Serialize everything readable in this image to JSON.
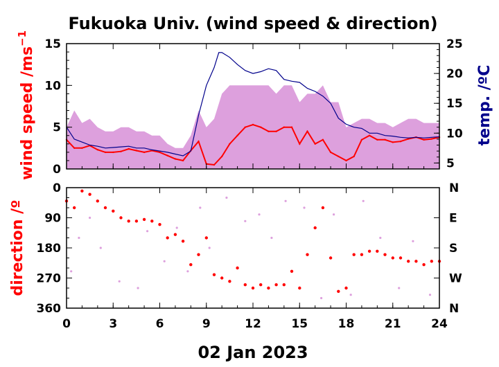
{
  "title": "Fukuoka Univ. (wind speed & direction)",
  "xlabel": "02 Jan 2023",
  "colors": {
    "wind": "#ff0000",
    "gust": "#dda0dd",
    "temp": "#00008b",
    "axis": "#000000"
  },
  "chart_data": [
    {
      "type": "line",
      "panel": "top",
      "ylabel": "wind speed /ms",
      "ylabel_sup": "−1",
      "y2label": "temp. /ºC",
      "xlim": [
        0,
        24
      ],
      "ylim": [
        0,
        15
      ],
      "y2lim": [
        4,
        25
      ],
      "x_ticks": [
        0,
        3,
        6,
        9,
        12,
        15,
        18,
        21,
        24
      ],
      "y_ticks": [
        0,
        5,
        10,
        15
      ],
      "y2_ticks": [
        5,
        10,
        15,
        20,
        25
      ],
      "series": [
        {
          "role": "gust",
          "x": [
            0,
            0.5,
            1,
            1.5,
            2,
            2.5,
            3,
            3.5,
            4,
            4.5,
            5,
            5.5,
            6,
            6.5,
            7,
            7.5,
            8,
            8.5,
            9,
            9.5,
            10,
            10.5,
            11,
            11.5,
            12,
            12.5,
            13,
            13.5,
            14,
            14.5,
            15,
            15.5,
            16,
            16.5,
            17,
            17.5,
            18,
            18.5,
            19,
            19.5,
            20,
            20.5,
            21,
            21.5,
            22,
            22.5,
            23,
            23.5,
            24
          ],
          "values": [
            5,
            7,
            5.5,
            6,
            5,
            4.5,
            4.5,
            5,
            5,
            4.5,
            4.5,
            4,
            4,
            3,
            2.5,
            2.5,
            4,
            7,
            5,
            6,
            9,
            10,
            10,
            10,
            10,
            10,
            10,
            9,
            10,
            10,
            8,
            9,
            9,
            10,
            8,
            8,
            5,
            5.5,
            6,
            6,
            5.5,
            5.5,
            5,
            5.5,
            6,
            6,
            5.5,
            5.5,
            5.5
          ]
        },
        {
          "role": "wind",
          "x": [
            0,
            0.5,
            1,
            1.5,
            2,
            2.5,
            3,
            3.5,
            4,
            4.5,
            5,
            5.5,
            6,
            6.5,
            7,
            7.5,
            8,
            8.5,
            9,
            9.5,
            10,
            10.5,
            11,
            11.5,
            12,
            12.5,
            13,
            13.5,
            14,
            14.5,
            15,
            15.5,
            16,
            16.5,
            17,
            17.5,
            18,
            18.5,
            19,
            19.5,
            20,
            20.5,
            21,
            21.5,
            22,
            22.5,
            23,
            23.5,
            24
          ],
          "values": [
            3.5,
            2.5,
            2.5,
            2.8,
            2.3,
            2,
            2,
            2.1,
            2.4,
            2.2,
            2,
            2.2,
            2,
            1.6,
            1.2,
            1,
            2.2,
            3.3,
            0.6,
            0.5,
            1.5,
            3,
            4,
            5,
            5.3,
            5,
            4.5,
            4.5,
            5,
            5,
            3,
            4.5,
            3,
            3.5,
            2,
            1.5,
            1,
            1.5,
            3.5,
            4,
            3.5,
            3.5,
            3.2,
            3.3,
            3.6,
            3.8,
            3.5,
            3.6,
            3.8
          ]
        },
        {
          "role": "temp",
          "axis": "y2",
          "x": [
            0,
            0.5,
            1,
            1.5,
            2,
            2.5,
            3,
            3.5,
            4,
            4.5,
            5,
            5.5,
            6,
            6.5,
            7,
            7.5,
            8,
            8.5,
            9,
            9.5,
            9.8,
            10,
            10.5,
            11,
            11.5,
            12,
            12.5,
            13,
            13.5,
            14,
            14.5,
            15,
            15.5,
            16,
            16.5,
            17,
            17.5,
            18,
            18.5,
            19,
            19.5,
            20,
            20.5,
            21,
            21.5,
            22,
            22.5,
            23,
            23.5,
            24
          ],
          "values": [
            11,
            9,
            8.5,
            8,
            7.8,
            7.5,
            7.6,
            7.7,
            7.8,
            7.5,
            7.5,
            7.2,
            7,
            6.8,
            6.5,
            6.2,
            7,
            13,
            18,
            21,
            23.5,
            23.5,
            22.7,
            21.5,
            20.5,
            20,
            20.3,
            20.8,
            20.5,
            19,
            18.7,
            18.5,
            17.5,
            17,
            16.2,
            15,
            12.5,
            11.5,
            11,
            10.8,
            10,
            10,
            9.6,
            9.5,
            9.3,
            9.2,
            9.3,
            9.2,
            9.3,
            9.4
          ]
        }
      ]
    },
    {
      "type": "scatter",
      "panel": "bottom",
      "ylabel": "direction /º",
      "xlim": [
        0,
        24
      ],
      "ylim": [
        360,
        0
      ],
      "x_ticks": [
        0,
        3,
        6,
        9,
        12,
        15,
        18,
        21,
        24
      ],
      "y_ticks": [
        0,
        90,
        180,
        270,
        360
      ],
      "y2_tick_labels": [
        "N",
        "E",
        "S",
        "W",
        "N"
      ],
      "series": [
        {
          "role": "direction-mean",
          "x": [
            0,
            0.5,
            1,
            1.5,
            2,
            2.5,
            3,
            3.5,
            4,
            4.5,
            5,
            5.5,
            6,
            6.5,
            7,
            7.5,
            8,
            8.5,
            9,
            9.5,
            10,
            10.5,
            11,
            11.5,
            12,
            12.5,
            13,
            13.5,
            14,
            14.5,
            15,
            15.5,
            16,
            16.5,
            17,
            17.5,
            18,
            18.5,
            19,
            19.5,
            20,
            20.5,
            21,
            21.5,
            22,
            22.5,
            23,
            23.5,
            24
          ],
          "values": [
            40,
            60,
            10,
            20,
            40,
            60,
            70,
            90,
            100,
            100,
            95,
            100,
            110,
            150,
            140,
            160,
            230,
            200,
            150,
            260,
            270,
            280,
            240,
            290,
            300,
            290,
            300,
            290,
            290,
            250,
            300,
            200,
            120,
            60,
            210,
            310,
            300,
            200,
            200,
            190,
            190,
            200,
            210,
            210,
            220,
            220,
            230,
            220,
            220
          ]
        },
        {
          "role": "direction-scatter",
          "x": [
            0.3,
            0.8,
            1.5,
            2.2,
            3.4,
            4.6,
            5.2,
            6.3,
            7.1,
            7.8,
            8.6,
            9.2,
            10.3,
            11.5,
            12.4,
            13.2,
            14.1,
            15.3,
            16.4,
            17.2,
            18.3,
            19.1,
            20.2,
            21.4,
            22.3,
            23.4
          ],
          "values": [
            250,
            150,
            90,
            180,
            280,
            300,
            130,
            220,
            120,
            250,
            60,
            180,
            30,
            100,
            80,
            150,
            40,
            60,
            330,
            80,
            320,
            40,
            150,
            300,
            160,
            320
          ]
        }
      ]
    }
  ]
}
